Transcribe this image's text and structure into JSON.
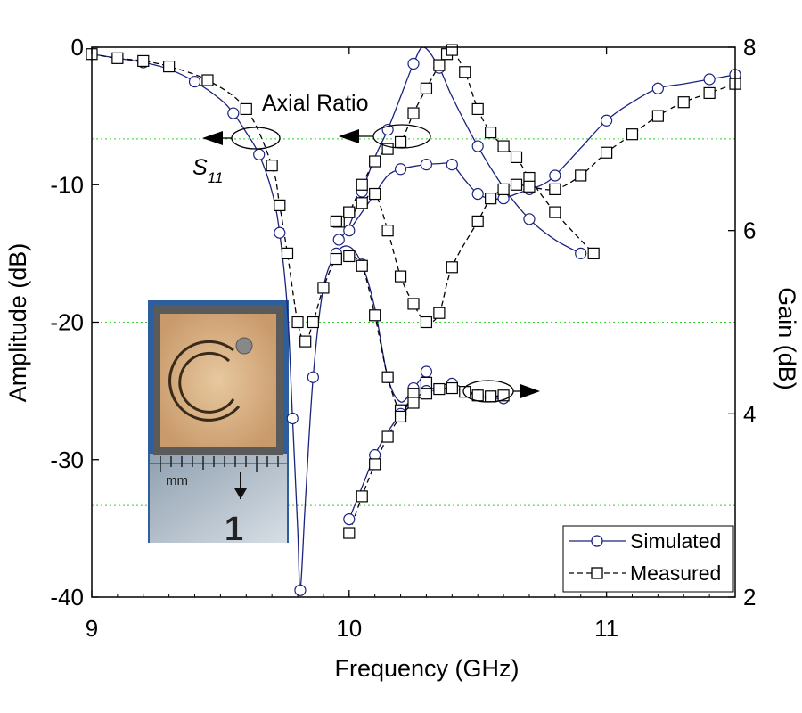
{
  "chart_data": {
    "type": "line",
    "xlabel": "Frequency (GHz)",
    "ylabel": "Amplitude (dB)",
    "y2label": "Gain (dB)",
    "xlim": [
      9,
      11.5
    ],
    "ylim": [
      -40,
      0
    ],
    "y2lim": [
      2,
      8
    ],
    "xticks": [
      "9",
      "10",
      "11"
    ],
    "xtick_values": [
      9,
      10,
      11
    ],
    "yticks": [
      "0",
      "-10",
      "-20",
      "-30",
      "-40"
    ],
    "ytick_values": [
      0,
      -10,
      -20,
      -30,
      -40
    ],
    "y2ticks": [
      "8",
      "6",
      "4",
      "2"
    ],
    "y2tick_values": [
      8,
      6,
      4,
      2
    ],
    "grid_y": [
      -6.67,
      -20,
      -33.33
    ],
    "annotations": {
      "axial_ratio": "Axial Ratio",
      "s11_base": "S",
      "s11_sub": "11"
    },
    "legend": [
      {
        "label": "Simulated",
        "style": "solid",
        "marker": "circle",
        "color": "#1a237e"
      },
      {
        "label": "Measured",
        "style": "dashed",
        "marker": "square",
        "color": "#000000"
      }
    ],
    "inset": {
      "ruler_label": "mm",
      "ruler_number": "1"
    },
    "series": [
      {
        "name": "S11 Simulated",
        "axis": "left",
        "style": "solid",
        "color": "#1a237e",
        "x": [
          9.0,
          9.1,
          9.2,
          9.3,
          9.4,
          9.5,
          9.55,
          9.6,
          9.65,
          9.7,
          9.73,
          9.76,
          9.78,
          9.8,
          9.81,
          9.83,
          9.86,
          9.9,
          9.95,
          10.0,
          10.05,
          10.1,
          10.15,
          10.2,
          10.25,
          10.3
        ],
        "y": [
          -0.5,
          -0.8,
          -1.1,
          -1.6,
          -2.5,
          -3.8,
          -4.8,
          -6.2,
          -7.8,
          -10.5,
          -13.5,
          -19,
          -27,
          -35,
          -39.5,
          -33,
          -24,
          -17.5,
          -15.0,
          -14.5,
          -15.8,
          -19,
          -24,
          -25.8,
          -24.8,
          -23.6
        ]
      },
      {
        "name": "S11 Measured",
        "axis": "left",
        "style": "dashed",
        "color": "#000000",
        "x": [
          9.0,
          9.1,
          9.2,
          9.3,
          9.45,
          9.6,
          9.7,
          9.73,
          9.76,
          9.8,
          9.83,
          9.86,
          9.9,
          9.95,
          10.0,
          10.05,
          10.1,
          10.15,
          10.2,
          10.25,
          10.3
        ],
        "y": [
          -0.5,
          -0.8,
          -1.0,
          -1.4,
          -2.4,
          -4.5,
          -8.6,
          -11.5,
          -15.0,
          -20.0,
          -21.4,
          -20.0,
          -17.5,
          -15.4,
          -15.2,
          -15.9,
          -19.5,
          -24.0,
          -26.4,
          -25.2,
          -24.4
        ]
      },
      {
        "name": "Axial Ratio Simulated",
        "axis": "left",
        "style": "solid",
        "color": "#1a237e",
        "x": [
          9.96,
          10.0,
          10.05,
          10.1,
          10.15,
          10.2,
          10.25,
          10.29,
          10.35,
          10.4,
          10.5,
          10.6,
          10.7,
          10.8,
          10.9
        ],
        "y": [
          -14.0,
          -13.0,
          -10.5,
          -8.0,
          -6.0,
          -3.6,
          -1.2,
          0.0,
          -1.5,
          -3.6,
          -7.2,
          -10.2,
          -12.5,
          -14.0,
          -15.0
        ]
      },
      {
        "name": "Axial Ratio Measured",
        "axis": "left",
        "style": "dashed",
        "color": "#000000",
        "x": [
          9.96,
          10.0,
          10.05,
          10.1,
          10.15,
          10.2,
          10.25,
          10.3,
          10.35,
          10.38,
          10.4,
          10.45,
          10.5,
          10.55,
          10.6,
          10.65,
          10.7,
          10.8,
          10.95
        ],
        "y": [
          -12.7,
          -12.0,
          -10.0,
          -8.3,
          -7.4,
          -6.9,
          -4.8,
          -3.0,
          -1.3,
          -0.5,
          -0.2,
          -1.8,
          -4.5,
          -6.2,
          -7.2,
          -8.0,
          -9.5,
          -12.0,
          -15.0
        ]
      },
      {
        "name": "Gain Simulated",
        "axis": "right",
        "style": "solid",
        "color": "#1a237e",
        "x": [
          10.0,
          10.05,
          10.1,
          10.15,
          10.2,
          10.25,
          10.3,
          10.35,
          10.4,
          10.45,
          10.5,
          10.55,
          10.6,
          10.65,
          10.7,
          10.75,
          10.8,
          10.9,
          11.0,
          11.1,
          11.2,
          11.3,
          11.4,
          11.5
        ],
        "y": [
          6.0,
          6.2,
          6.4,
          6.6,
          6.67,
          6.7,
          6.72,
          6.73,
          6.72,
          6.55,
          6.4,
          6.35,
          6.35,
          6.4,
          6.45,
          6.5,
          6.6,
          6.9,
          7.2,
          7.4,
          7.55,
          7.6,
          7.65,
          7.7
        ]
      },
      {
        "name": "Gain Measured",
        "axis": "right",
        "style": "dashed",
        "color": "#000000",
        "x": [
          9.95,
          10.0,
          10.05,
          10.1,
          10.15,
          10.2,
          10.25,
          10.3,
          10.35,
          10.4,
          10.5,
          10.55,
          10.6,
          10.65,
          10.7,
          10.8,
          10.9,
          11.0,
          11.1,
          11.2,
          11.3,
          11.4,
          11.5
        ],
        "y": [
          6.1,
          6.2,
          6.3,
          6.4,
          6.0,
          5.5,
          5.2,
          5.0,
          5.1,
          5.6,
          6.1,
          6.35,
          6.45,
          6.5,
          6.48,
          6.45,
          6.6,
          6.85,
          7.05,
          7.25,
          7.4,
          7.5,
          7.6
        ]
      },
      {
        "name": "Gain Simulated (lower)",
        "axis": "right",
        "style": "solid",
        "color": "#1a237e",
        "x": [
          10.0,
          10.05,
          10.1,
          10.15,
          10.2,
          10.25,
          10.3,
          10.35,
          10.4,
          10.45,
          10.5,
          10.55,
          10.6
        ],
        "y": [
          2.85,
          3.2,
          3.55,
          3.8,
          4.0,
          4.15,
          4.25,
          4.3,
          4.33,
          4.27,
          4.2,
          4.17,
          4.17
        ]
      },
      {
        "name": "Gain Measured (lower)",
        "axis": "right",
        "style": "dashed",
        "color": "#000000",
        "x": [
          10.0,
          10.05,
          10.1,
          10.15,
          10.2,
          10.25,
          10.3,
          10.35,
          10.4,
          10.45,
          10.5,
          10.55,
          10.6
        ],
        "y": [
          2.7,
          3.1,
          3.45,
          3.75,
          3.97,
          4.12,
          4.22,
          4.27,
          4.28,
          4.24,
          4.2,
          4.19,
          4.2
        ]
      }
    ]
  }
}
